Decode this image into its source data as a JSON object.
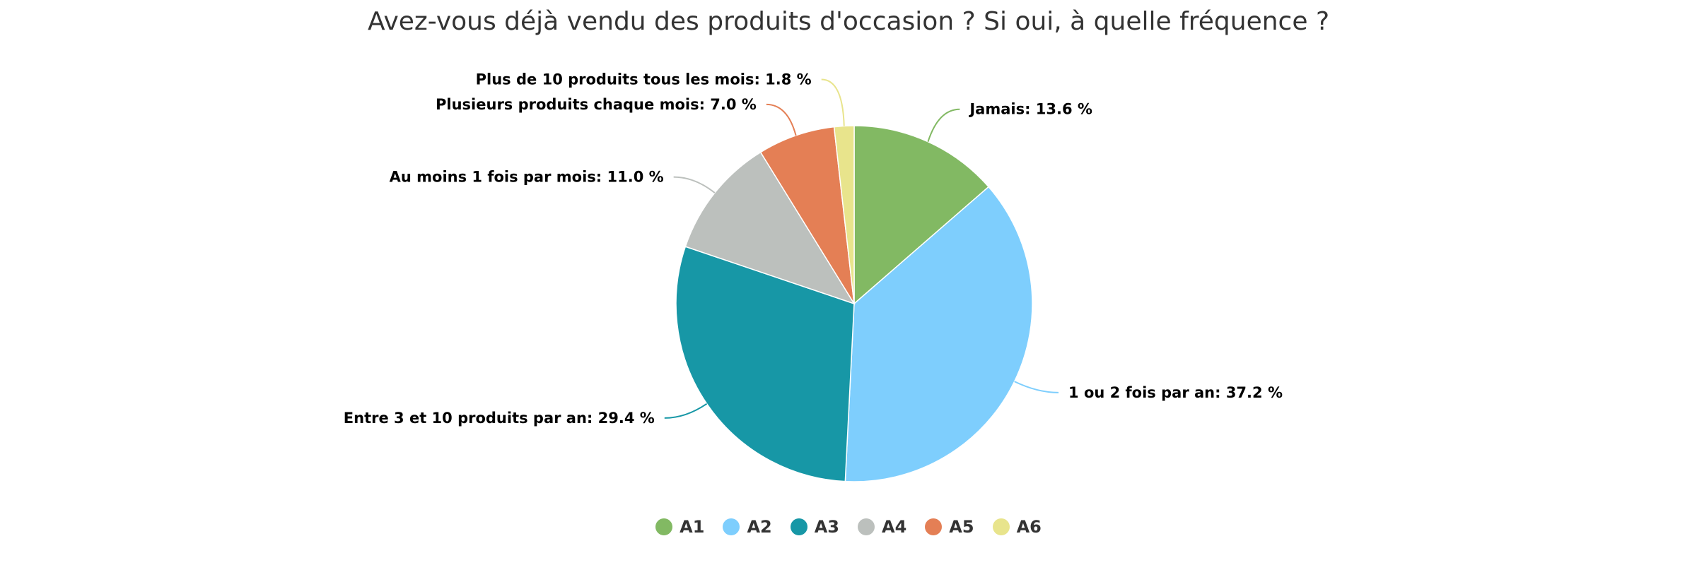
{
  "chart_data": {
    "type": "pie",
    "title": "Avez-vous déjà vendu des produits d'occasion ? Si oui, à quelle fréquence ?",
    "legend_position": "bottom",
    "unit": "%",
    "slices": [
      {
        "legend": "A1",
        "label": "Jamais",
        "value": 13.6,
        "value_text": "13.6 %",
        "color": "#82b963"
      },
      {
        "legend": "A2",
        "label": "1 ou 2 fois par an",
        "value": 37.2,
        "value_text": "37.2 %",
        "color": "#7ecefd"
      },
      {
        "legend": "A3",
        "label": "Entre 3 et 10 produits par an",
        "value": 29.4,
        "value_text": "29.4 %",
        "color": "#1797a6"
      },
      {
        "legend": "A4",
        "label": "Au moins 1 fois par mois",
        "value": 11.0,
        "value_text": "11.0 %",
        "color": "#bcc0bd"
      },
      {
        "legend": "A5",
        "label": "Plusieurs produits chaque mois",
        "value": 7.0,
        "value_text": "7.0 %",
        "color": "#e47f55"
      },
      {
        "legend": "A6",
        "label": "Plus de 10 produits tous les mois",
        "value": 1.8,
        "value_text": "1.8 %",
        "color": "#e8e48c"
      }
    ]
  }
}
